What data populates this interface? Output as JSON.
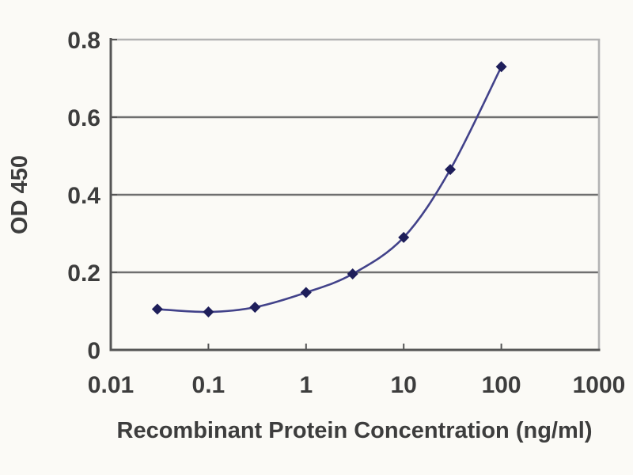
{
  "figure": {
    "background": "#fbfaf6",
    "text_color": "#3d3d3d"
  },
  "chart_data": {
    "type": "line",
    "title": "",
    "xlabel": "Recombinant Protein Concentration (ng/ml)",
    "ylabel": "OD 450",
    "x_scale": "log",
    "xlim": [
      0.01,
      1000
    ],
    "ylim": [
      0,
      0.8
    ],
    "x_ticks": [
      0.1,
      1,
      10,
      100
    ],
    "x_tick_labels": [
      {
        "value": 0.01,
        "label": "0.01"
      },
      {
        "value": 0.1,
        "label": "0.1"
      },
      {
        "value": 1,
        "label": "1"
      },
      {
        "value": 10,
        "label": "10"
      },
      {
        "value": 100,
        "label": "100"
      },
      {
        "value": 1000,
        "label": "1000"
      }
    ],
    "y_tick_labels": [
      {
        "value": 0,
        "label": "0"
      },
      {
        "value": 0.2,
        "label": "0.2"
      },
      {
        "value": 0.4,
        "label": "0.4"
      },
      {
        "value": 0.6,
        "label": "0.6"
      },
      {
        "value": 0.8,
        "label": "0.8"
      }
    ],
    "grid": "horizontal",
    "legend": "none",
    "style": {
      "grid_color": "#6f6f6f",
      "axis_color": "#555555",
      "border_color": "#b3b3b3",
      "line_color": "#42428a",
      "marker_color": "#1e1e5a"
    },
    "series": [
      {
        "name": "OD 450",
        "marker": "diamond",
        "points": [
          {
            "x": 0.03,
            "y": 0.105
          },
          {
            "x": 0.1,
            "y": 0.098
          },
          {
            "x": 0.3,
            "y": 0.11
          },
          {
            "x": 1,
            "y": 0.148
          },
          {
            "x": 3,
            "y": 0.196
          },
          {
            "x": 10,
            "y": 0.29
          },
          {
            "x": 30,
            "y": 0.465
          },
          {
            "x": 100,
            "y": 0.73
          }
        ]
      }
    ]
  }
}
